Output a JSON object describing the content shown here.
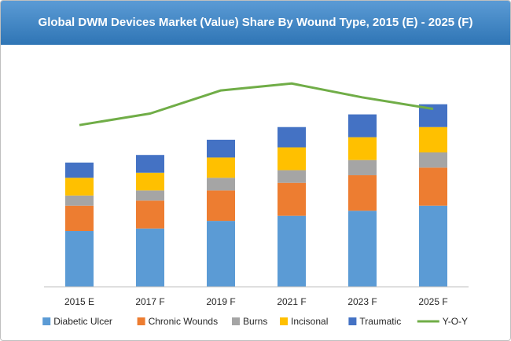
{
  "chart_data": {
    "type": "bar",
    "stacked": true,
    "title": "Global DWM Devices Market (Value) Share By Wound Type, 2015 (E) - 2025 (F)",
    "categories": [
      "2015 E",
      "2017 F",
      "2019 F",
      "2021 F",
      "2023 F",
      "2025 F"
    ],
    "series": [
      {
        "name": "Diabetic Ulcer",
        "color": "#5b9bd5",
        "values": [
          22,
          23,
          26,
          28,
          30,
          32
        ]
      },
      {
        "name": "Chronic Wounds",
        "color": "#ed7d31",
        "values": [
          10,
          11,
          12,
          13,
          14,
          15
        ]
      },
      {
        "name": "Burns",
        "color": "#a5a5a5",
        "values": [
          4,
          4,
          5,
          5,
          6,
          6
        ]
      },
      {
        "name": "Incisonal",
        "color": "#ffc000",
        "values": [
          7,
          7,
          8,
          9,
          9,
          10
        ]
      },
      {
        "name": "Traumatic",
        "color": "#4472c4",
        "values": [
          6,
          7,
          7,
          8,
          9,
          9
        ]
      }
    ],
    "line_series": {
      "name": "Y-O-Y",
      "color": "#70ad47",
      "values": [
        70,
        75,
        85,
        88,
        82,
        77
      ],
      "ylim": [
        0,
        100
      ]
    },
    "ylim": [
      0,
      75
    ],
    "grid": false,
    "legend": "bottom"
  }
}
